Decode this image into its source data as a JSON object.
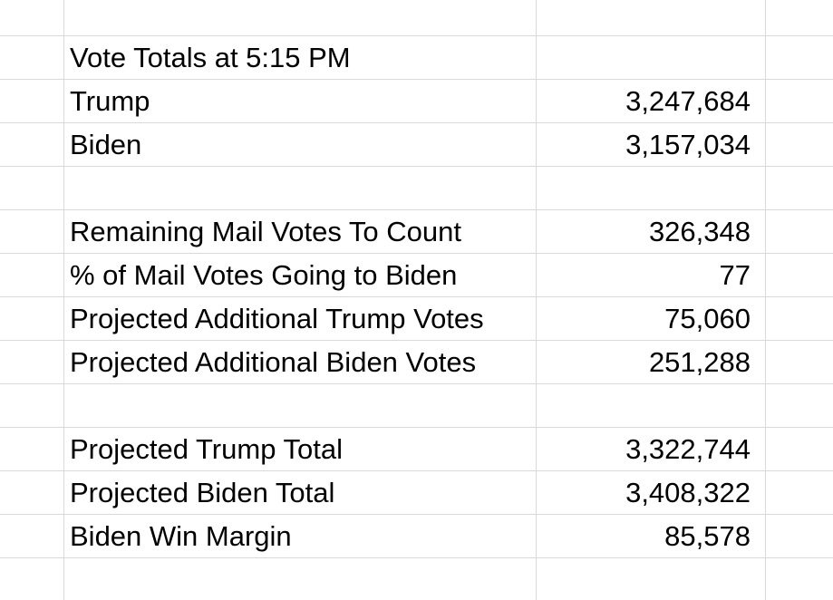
{
  "sheet": {
    "rows": [
      {
        "label": "",
        "value": ""
      },
      {
        "label": "Vote Totals at 5:15 PM",
        "value": ""
      },
      {
        "label": "Trump",
        "value": "3,247,684"
      },
      {
        "label": "Biden",
        "value": "3,157,034"
      },
      {
        "label": "",
        "value": ""
      },
      {
        "label": "Remaining Mail Votes To Count",
        "value": "326,348"
      },
      {
        "label": "% of Mail Votes Going to Biden",
        "value": "77"
      },
      {
        "label": "Projected Additional Trump Votes",
        "value": "75,060"
      },
      {
        "label": "Projected Additional Biden Votes",
        "value": "251,288"
      },
      {
        "label": "",
        "value": ""
      },
      {
        "label": "Projected Trump Total",
        "value": "3,322,744"
      },
      {
        "label": "Projected Biden Total",
        "value": "3,408,322"
      },
      {
        "label": "Biden Win Margin",
        "value": "85,578"
      },
      {
        "label": "",
        "value": ""
      }
    ]
  },
  "colors": {
    "gridline": "#d9d9d9",
    "text": "#000000",
    "background": "#ffffff"
  }
}
